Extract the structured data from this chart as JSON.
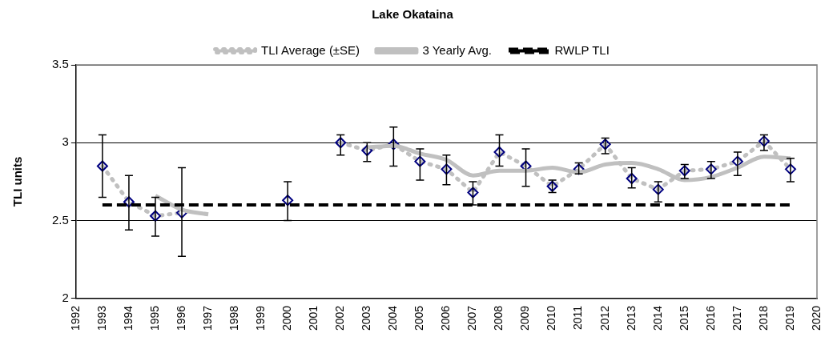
{
  "chart_data": {
    "type": "line",
    "title": "Lake Okataina",
    "ylabel": "TLI units",
    "x": [
      1993,
      1994,
      1995,
      1996,
      1997,
      1998,
      1999,
      2000,
      2001,
      2002,
      2003,
      2004,
      2005,
      2006,
      2007,
      2008,
      2009,
      2010,
      2011,
      2012,
      2013,
      2014,
      2015,
      2016,
      2017,
      2018,
      2019
    ],
    "series": [
      {
        "name": "TLI Average (±SE)",
        "color": "#000080",
        "marker": "diamond",
        "line_style": "dotted",
        "values": [
          2.85,
          2.62,
          2.53,
          2.55,
          null,
          null,
          null,
          2.63,
          null,
          3.0,
          2.95,
          2.99,
          2.88,
          2.83,
          2.68,
          2.94,
          2.85,
          2.72,
          2.83,
          2.99,
          2.77,
          2.7,
          2.82,
          2.83,
          2.88,
          3.01,
          2.83
        ],
        "errors": [
          [
            2.65,
            3.05
          ],
          [
            2.44,
            2.79
          ],
          [
            2.4,
            2.65
          ],
          [
            2.27,
            2.84
          ],
          null,
          null,
          null,
          [
            2.5,
            2.75
          ],
          null,
          [
            2.92,
            3.05
          ],
          [
            2.88,
            3.0
          ],
          [
            2.85,
            3.1
          ],
          [
            2.76,
            2.96
          ],
          [
            2.73,
            2.92
          ],
          [
            2.6,
            2.75
          ],
          [
            2.85,
            3.05
          ],
          [
            2.72,
            2.96
          ],
          [
            2.68,
            2.76
          ],
          [
            2.8,
            2.87
          ],
          [
            2.93,
            3.03
          ],
          [
            2.71,
            2.84
          ],
          [
            2.62,
            2.75
          ],
          [
            2.77,
            2.86
          ],
          [
            2.77,
            2.88
          ],
          [
            2.79,
            2.94
          ],
          [
            2.95,
            3.05
          ],
          [
            2.75,
            2.9
          ]
        ]
      },
      {
        "name": "3 Yearly Avg.",
        "color": "#c0c0c0",
        "marker": "none",
        "line_style": "solid",
        "x": [
          1995,
          1996,
          1997,
          2000,
          2003,
          2004,
          2005,
          2006,
          2007,
          2008,
          2009,
          2010,
          2011,
          2012,
          2013,
          2014,
          2015,
          2016,
          2017,
          2018,
          2019
        ],
        "values": [
          2.66,
          2.57,
          2.54,
          null,
          2.97,
          2.98,
          2.93,
          2.89,
          2.79,
          2.82,
          2.82,
          2.84,
          2.81,
          2.86,
          2.87,
          2.83,
          2.76,
          2.78,
          2.84,
          2.91,
          2.9
        ]
      },
      {
        "name": "RWLP TLI",
        "color": "#000000",
        "marker": "none",
        "line_style": "dashed",
        "x": [
          1993,
          2019
        ],
        "values": [
          2.6,
          2.6
        ]
      }
    ],
    "xlim": [
      1992,
      2020
    ],
    "xticks": [
      1992,
      1993,
      1994,
      1995,
      1996,
      1997,
      1998,
      1999,
      2000,
      2001,
      2002,
      2003,
      2004,
      2005,
      2006,
      2007,
      2008,
      2009,
      2010,
      2011,
      2012,
      2013,
      2014,
      2015,
      2016,
      2017,
      2018,
      2019,
      2020
    ],
    "ylim": [
      2,
      3.5
    ],
    "yticks": [
      2,
      2.5,
      3,
      3.5
    ],
    "grid": "y",
    "legend": "top"
  }
}
